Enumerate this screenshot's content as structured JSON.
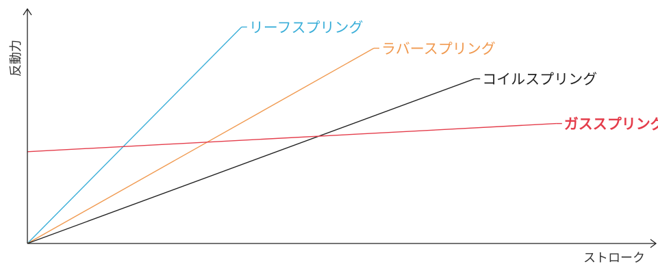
{
  "chart_data": {
    "type": "line",
    "title": "",
    "xlabel": "ストローク",
    "ylabel": "反動力",
    "xlim": [
      0,
      100
    ],
    "ylim": [
      0,
      100
    ],
    "grid": false,
    "legend": "inline labels at line ends",
    "series": [
      {
        "name": "リーフスプリング",
        "color": "#3aaed8",
        "label_bold": false,
        "x": [
          0,
          34
        ],
        "y": [
          0,
          92
        ]
      },
      {
        "name": "ラバースプリング",
        "color": "#f0994f",
        "label_bold": false,
        "x": [
          0,
          55
        ],
        "y": [
          0,
          83
        ]
      },
      {
        "name": "コイルスプリング",
        "color": "#222222",
        "label_bold": false,
        "x": [
          0,
          71
        ],
        "y": [
          0,
          70
        ]
      },
      {
        "name": "ガススプリング",
        "color": "#e43c4a",
        "label_bold": true,
        "x": [
          0,
          84
        ],
        "y": [
          39,
          51
        ]
      }
    ]
  }
}
